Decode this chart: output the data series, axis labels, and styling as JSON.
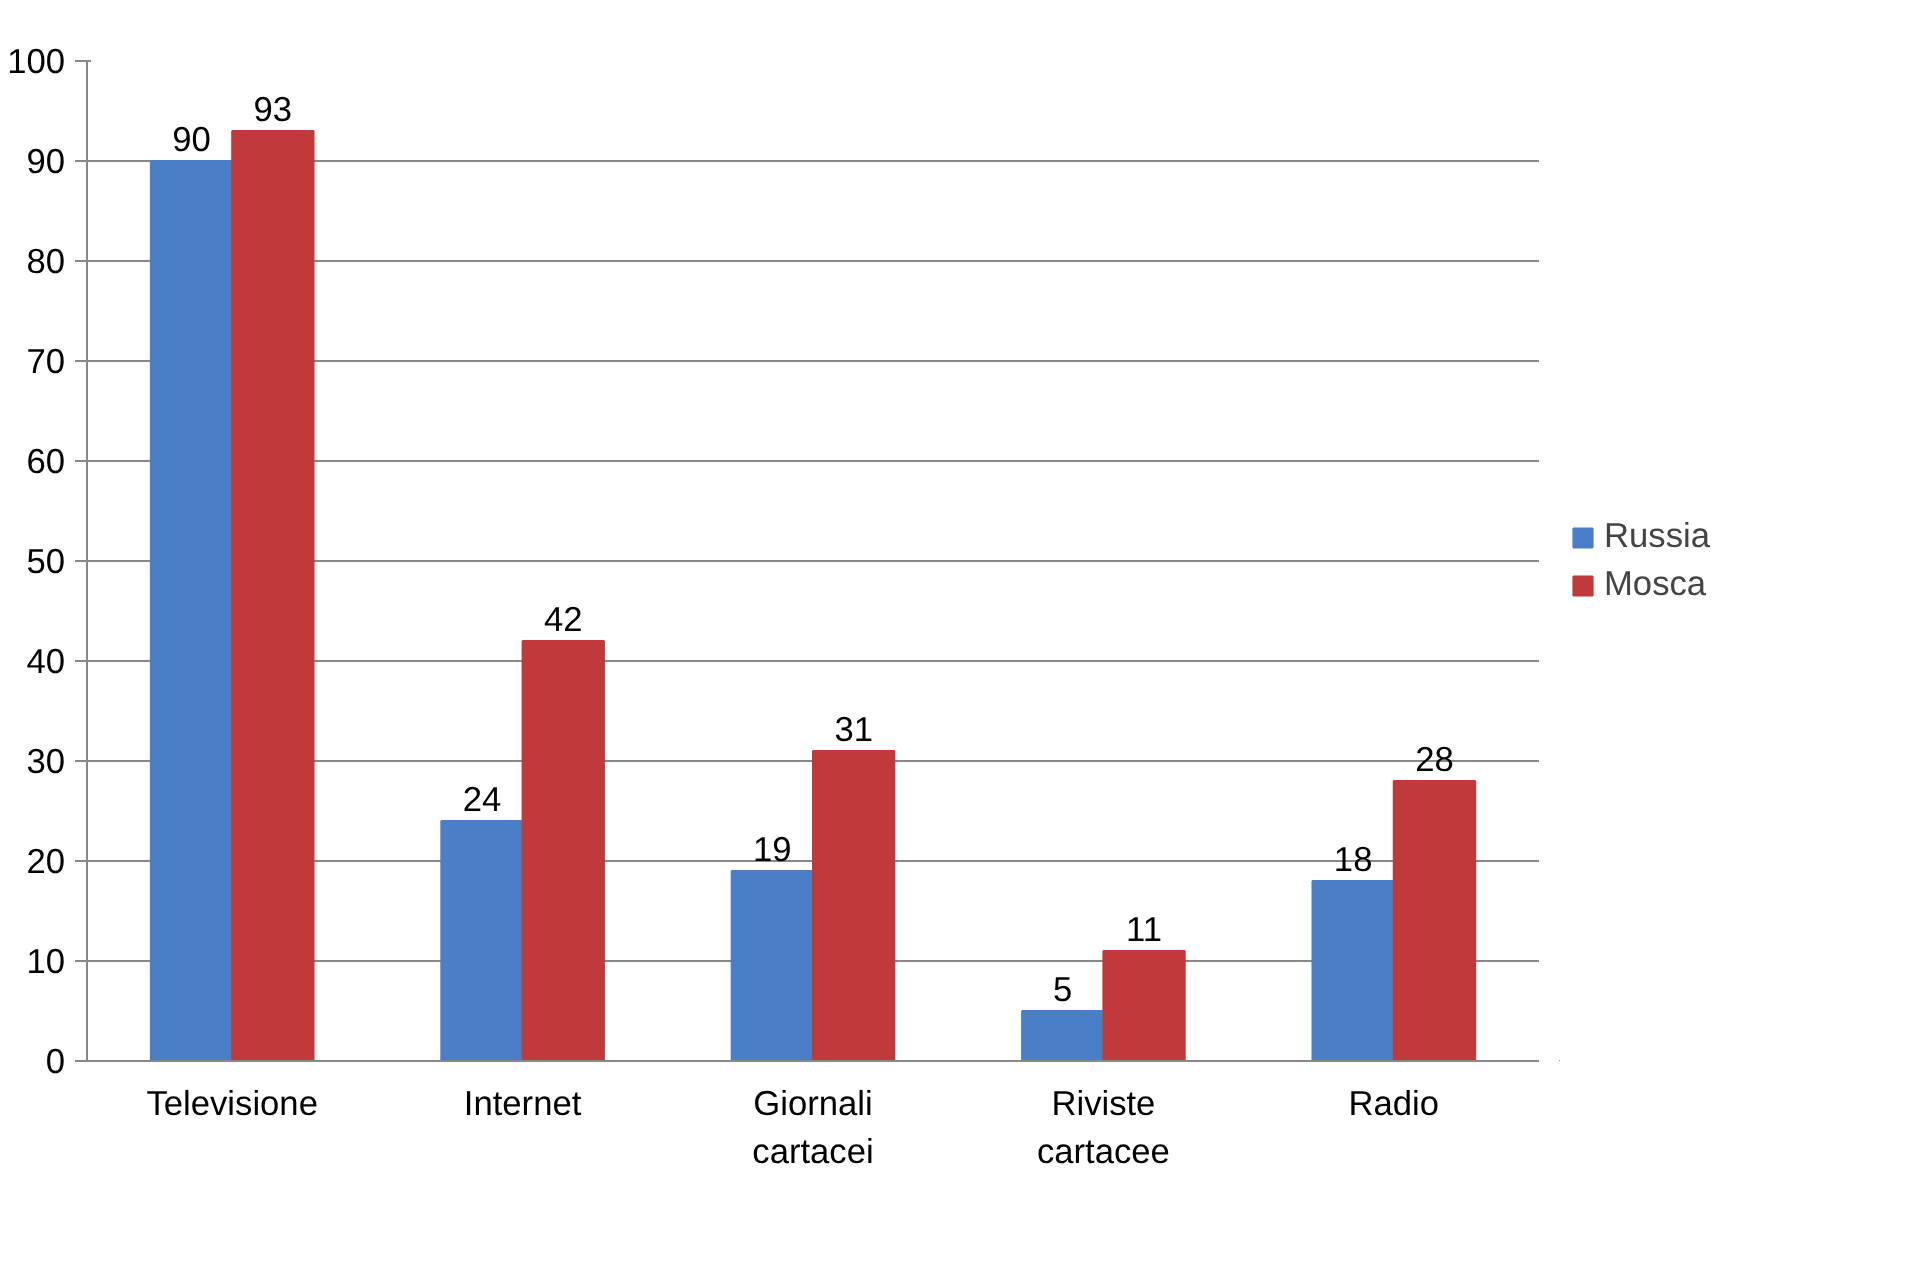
{
  "chart_data": {
    "type": "bar",
    "categories": [
      "Televisione",
      "Internet",
      "Giornali cartacei",
      "Riviste cartacee",
      "Radio"
    ],
    "series": [
      {
        "name": "Russia",
        "color": "#4a7fc8",
        "values": [
          90,
          24,
          19,
          5,
          18
        ]
      },
      {
        "name": "Mosca",
        "color": "#c0393b",
        "values": [
          93,
          42,
          31,
          11,
          28
        ]
      }
    ],
    "ylim": [
      0,
      100
    ],
    "yticks": [
      0,
      10,
      20,
      30,
      40,
      50,
      60,
      70,
      80,
      90,
      100
    ],
    "grid": "y",
    "legend": "right",
    "data_labels": true
  }
}
